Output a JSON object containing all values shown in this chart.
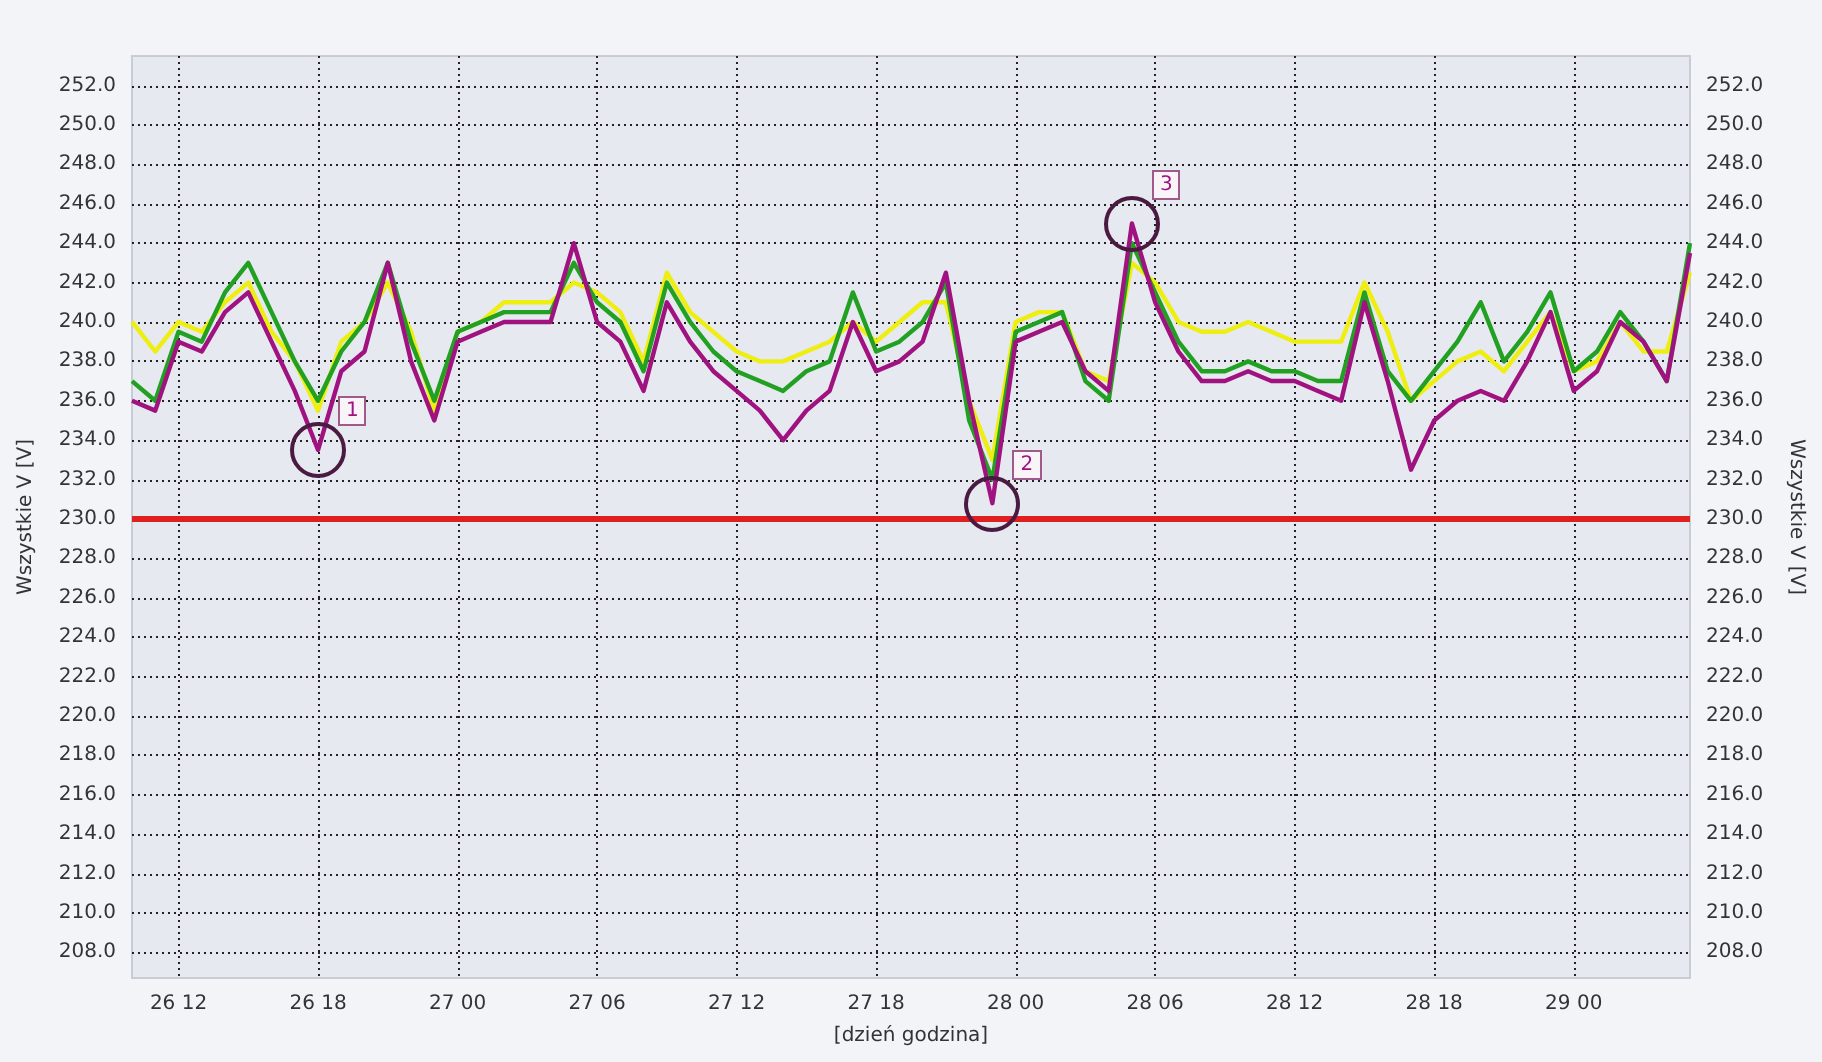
{
  "chart_data": {
    "type": "line",
    "xlabel": "[dzień godzina]",
    "ylabel": "Wszystkie V [V]",
    "y2label": "Wszystkie V [V]",
    "categories": [
      null,
      null,
      "26 12",
      null,
      null,
      null,
      null,
      null,
      "26 18",
      null,
      null,
      null,
      null,
      null,
      "27 00",
      null,
      null,
      null,
      null,
      null,
      "27 06",
      null,
      null,
      null,
      null,
      null,
      "27 12",
      null,
      null,
      null,
      null,
      null,
      "27 18",
      null,
      null,
      null,
      null,
      null,
      "28 00",
      null,
      null,
      null,
      null,
      null,
      "28 06",
      null,
      null,
      null,
      null,
      null,
      "28 12",
      null,
      null,
      null,
      null,
      null,
      "28 18",
      null,
      null,
      null,
      null,
      null,
      "29 00",
      null,
      null,
      null,
      null,
      null
    ],
    "series": [
      {
        "color": "#eeee10",
        "values": [
          240,
          238.5,
          240,
          239.5,
          241,
          242,
          239.5,
          238,
          235.5,
          239,
          240,
          242,
          239.5,
          235.5,
          239.5,
          240,
          241,
          241,
          241,
          242,
          241.5,
          240.5,
          238,
          242.5,
          240.5,
          239.5,
          238.5,
          238,
          238,
          238.5,
          239,
          240,
          239,
          240,
          241,
          241,
          236,
          233,
          240,
          240.5,
          240.5,
          237.5,
          237,
          243,
          242,
          240,
          239.5,
          239.5,
          240,
          239.5,
          239,
          239,
          239,
          242,
          239.5,
          236,
          237,
          238,
          238.5,
          237.5,
          239,
          240.5,
          237.5,
          238,
          240,
          238.5,
          238.5,
          242.5
        ]
      },
      {
        "color": "#22a022",
        "values": [
          237,
          236,
          239.5,
          239,
          241.5,
          243,
          240.5,
          238,
          236,
          238.5,
          240,
          243,
          239,
          236,
          239.5,
          240,
          240.5,
          240.5,
          240.5,
          243,
          241,
          240,
          237.5,
          242,
          240,
          238.5,
          237.5,
          237,
          236.5,
          237.5,
          238,
          241.5,
          238.5,
          239,
          240,
          242,
          235,
          232,
          239.5,
          240,
          240.5,
          237,
          236,
          244,
          241.5,
          239,
          237.5,
          237.5,
          238,
          237.5,
          237.5,
          237,
          237,
          241.5,
          237.5,
          236,
          237.5,
          239,
          241,
          238,
          239.5,
          241.5,
          237.5,
          238.5,
          240.5,
          239,
          237,
          244
        ]
      },
      {
        "color": "#a0127f",
        "values": [
          236,
          235.5,
          239,
          238.5,
          240.5,
          241.5,
          239,
          236.5,
          233.5,
          237.5,
          238.5,
          243,
          238,
          235,
          239,
          239.5,
          240,
          240,
          240,
          244,
          240,
          239,
          236.5,
          241,
          239,
          237.5,
          236.5,
          235.5,
          234,
          235.5,
          236.5,
          240,
          237.5,
          238,
          239,
          242.5,
          236,
          230.8,
          239,
          239.5,
          240,
          237.5,
          236.5,
          245,
          241,
          238.5,
          237,
          237,
          237.5,
          237,
          237,
          236.5,
          236,
          241,
          237,
          232.5,
          235,
          236,
          236.5,
          236,
          238,
          240.5,
          236.5,
          237.5,
          240,
          239,
          237,
          243.5
        ]
      }
    ],
    "ylim": [
      206.7,
      253.5
    ],
    "yticks": [
      {
        "value": 208,
        "label": "208.0"
      },
      {
        "value": 210,
        "label": "210.0"
      },
      {
        "value": 212,
        "label": "212.0"
      },
      {
        "value": 214,
        "label": "214.0"
      },
      {
        "value": 216,
        "label": "216.0"
      },
      {
        "value": 218,
        "label": "218.0"
      },
      {
        "value": 220,
        "label": "220.0"
      },
      {
        "value": 222,
        "label": "222.0"
      },
      {
        "value": 224,
        "label": "224.0"
      },
      {
        "value": 226,
        "label": "226.0"
      },
      {
        "value": 228,
        "label": "228.0"
      },
      {
        "value": 230,
        "label": "230.0"
      },
      {
        "value": 232,
        "label": "232.0"
      },
      {
        "value": 234,
        "label": "234.0"
      },
      {
        "value": 236,
        "label": "236.0"
      },
      {
        "value": 238,
        "label": "238.0"
      },
      {
        "value": 240,
        "label": "240.0"
      },
      {
        "value": 242,
        "label": "242.0"
      },
      {
        "value": 244,
        "label": "244.0"
      },
      {
        "value": 246,
        "label": "246.0"
      },
      {
        "value": 248,
        "label": "248.0"
      },
      {
        "value": 250,
        "label": "250.0"
      },
      {
        "value": 252,
        "label": "252.0"
      }
    ],
    "y2lim": [
      206.7,
      253.5
    ],
    "y2ticks": [
      {
        "value": 208,
        "label": "208.0"
      },
      {
        "value": 210,
        "label": "210.0"
      },
      {
        "value": 212,
        "label": "212.0"
      },
      {
        "value": 214,
        "label": "214.0"
      },
      {
        "value": 216,
        "label": "216.0"
      },
      {
        "value": 218,
        "label": "218.0"
      },
      {
        "value": 220,
        "label": "220.0"
      },
      {
        "value": 222,
        "label": "222.0"
      },
      {
        "value": 224,
        "label": "224.0"
      },
      {
        "value": 226,
        "label": "226.0"
      },
      {
        "value": 228,
        "label": "228.0"
      },
      {
        "value": 230,
        "label": "230.0"
      },
      {
        "value": 232,
        "label": "232.0"
      },
      {
        "value": 234,
        "label": "234.0"
      },
      {
        "value": 236,
        "label": "236.0"
      },
      {
        "value": 238,
        "label": "238.0"
      },
      {
        "value": 240,
        "label": "240.0"
      },
      {
        "value": 242,
        "label": "242.0"
      },
      {
        "value": 244,
        "label": "244.0"
      },
      {
        "value": 246,
        "label": "246.0"
      },
      {
        "value": 248,
        "label": "248.0"
      },
      {
        "value": 250,
        "label": "250.0"
      },
      {
        "value": 252,
        "label": "252.0"
      }
    ],
    "ref_lines": [
      {
        "axis": "y",
        "value": 230,
        "color": "#e02020"
      }
    ],
    "annotations": [
      {
        "text": "1",
        "x": "26 18",
        "y": 233.5
      },
      "2",
      "3"
    ],
    "grid": true,
    "line_style": "solid",
    "marker": "none"
  }
}
